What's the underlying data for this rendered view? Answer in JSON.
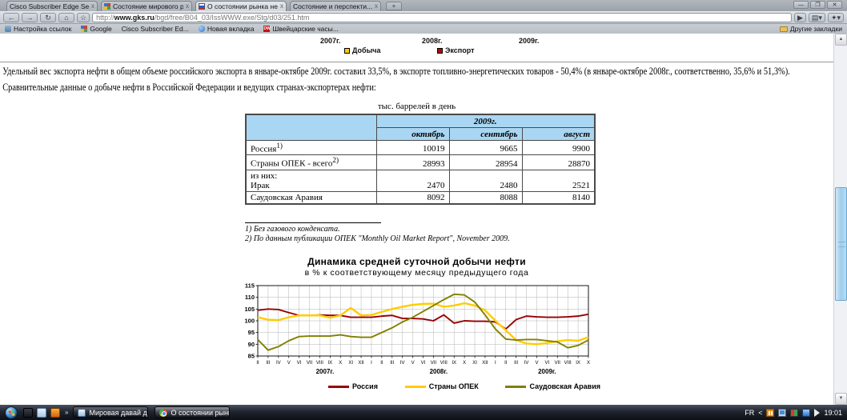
{
  "browser": {
    "tabs": [
      {
        "title": "Cisco Subscriber Edge Se...",
        "close": "x"
      },
      {
        "title": "Состояние мирового р...",
        "close": "x"
      },
      {
        "title": "О состоянии рынка неф...",
        "close": "x"
      },
      {
        "title": "Состояние и перспекти...",
        "close": "x"
      }
    ],
    "new_tab_label": "+",
    "window_controls": {
      "minimize": "—",
      "restore": "❐",
      "close": "✕"
    },
    "toolbar": {
      "back": "←",
      "forward": "→",
      "reload": "↻",
      "home": "⌂",
      "star": "☆",
      "go": "▶",
      "page_menu": "▤▾",
      "wrench_menu": "✦▾"
    },
    "address": {
      "prefix": "http://",
      "host": "www.gks.ru",
      "path": "/bgd/free/B04_03/IssWWW.exe/Stg/d03/251.htm"
    },
    "bookmarks": [
      "Настройка ссылок",
      "Google",
      "Cisco Subscriber Ed...",
      "Новая вкладка",
      "Швейцарские часы..."
    ],
    "other_bookmarks": "Другие закладки"
  },
  "page": {
    "top_chart_remnant": {
      "year_labels": [
        "2007г.",
        "2008г.",
        "2009г."
      ],
      "legend": [
        {
          "label": "Добыча",
          "color": "#ffcc00"
        },
        {
          "label": "Экспорт",
          "color": "#aa1100"
        }
      ]
    },
    "paragraph1": "Удельный вес экспорта нефти в общем объеме российского экспорта в январе-октябре 2009г. составил 33,5%, в экспорте топливно-энергетических товаров - 50,4% (в январе-октябре 2008г., соответственно, 35,6% и 51,3%).",
    "paragraph2": "Сравнительные данные о добыче нефти в Российской Федерации и ведущих странах-экспортерах нефти:",
    "table": {
      "caption": "тыс. баррелей в день",
      "year_header": "2009г.",
      "columns": [
        "октябрь",
        "сентябрь",
        "август"
      ],
      "rows": [
        {
          "label": "Россия",
          "sup": "1)",
          "values": [
            "10019",
            "9665",
            "9900"
          ]
        },
        {
          "label": "Страны ОПЕК - всего",
          "sup": "2)",
          "values": [
            "28993",
            "28954",
            "28870"
          ]
        },
        {
          "label": "из них:",
          "label2": "Ирак",
          "sup": "",
          "values": [
            "2470",
            "2480",
            "2521"
          ]
        },
        {
          "label": "Саудовская Аравия",
          "sup": "",
          "values": [
            "8092",
            "8088",
            "8140"
          ]
        }
      ]
    },
    "footnotes": [
      "1) Без газового конденсата.",
      "2) По данным публикации ОПЕК \"Monthly Oil Market Report\", November 2009."
    ]
  },
  "chart_data": {
    "type": "line",
    "title": "Динамика средней суточной добычи нефти",
    "subtitle": "в % к соответствующему месяцу предыдущего года",
    "ylim": [
      85,
      115
    ],
    "ytick_step": 5,
    "grid": true,
    "legend_position": "bottom",
    "x_labels": [
      "II",
      "III",
      "IV",
      "V",
      "VI",
      "VII",
      "VIII",
      "IX",
      "X",
      "XI",
      "XII",
      "I",
      "II",
      "III",
      "IV",
      "V",
      "VI",
      "VII",
      "VIII",
      "IX",
      "X",
      "XI",
      "XII",
      "I",
      "II",
      "III",
      "IV",
      "V",
      "VI",
      "VII",
      "VIII",
      "IX",
      "X"
    ],
    "year_labels": [
      "2007г.",
      "2008г.",
      "2009г."
    ],
    "year_centers": [
      6.5,
      17.5,
      28
    ],
    "series": [
      {
        "name": "Россия",
        "color": "#990000",
        "values": [
          104.5,
          105,
          104.8,
          103.5,
          102.3,
          102.3,
          102.5,
          102.3,
          102.3,
          101.5,
          101.5,
          101.5,
          102,
          102.3,
          101,
          101,
          100.8,
          100,
          102.5,
          99,
          100,
          99.8,
          99.8,
          99.5,
          96.5,
          100.5,
          102,
          101.7,
          101.5,
          101.5,
          101.7,
          102,
          102.8
        ]
      },
      {
        "name": "Страны ОПЕК",
        "color": "#ffcc00",
        "values": [
          101.5,
          100.5,
          100.3,
          101.5,
          102.3,
          102.3,
          102.3,
          101.3,
          102.3,
          105.5,
          102.3,
          102.5,
          103.8,
          105,
          106,
          106.8,
          107.2,
          107.3,
          106,
          106.5,
          107.5,
          106.5,
          104.5,
          100,
          96,
          91.8,
          90.3,
          90,
          90.5,
          91.3,
          91.8,
          91.5,
          93
        ]
      },
      {
        "name": "Саудовская Аравия",
        "color": "#808000",
        "values": [
          92,
          87.5,
          89,
          91.5,
          93.3,
          93.5,
          93.5,
          93.5,
          94,
          93.3,
          93,
          93,
          95,
          97,
          99.5,
          101.5,
          104,
          106.5,
          109,
          111.3,
          111,
          108,
          102.5,
          96.5,
          92.2,
          91.8,
          92,
          92,
          91.5,
          91,
          88.5,
          89.5,
          91.8
        ]
      }
    ]
  },
  "taskbar": {
    "buttons": [
      {
        "label": "Мировая давай дел...",
        "active": false
      },
      {
        "label": "О состоянии рынк...",
        "active": true
      }
    ],
    "overflow_chevron": "»",
    "tray": {
      "language": "FR",
      "chevron": "<",
      "clock": "19:01"
    }
  }
}
